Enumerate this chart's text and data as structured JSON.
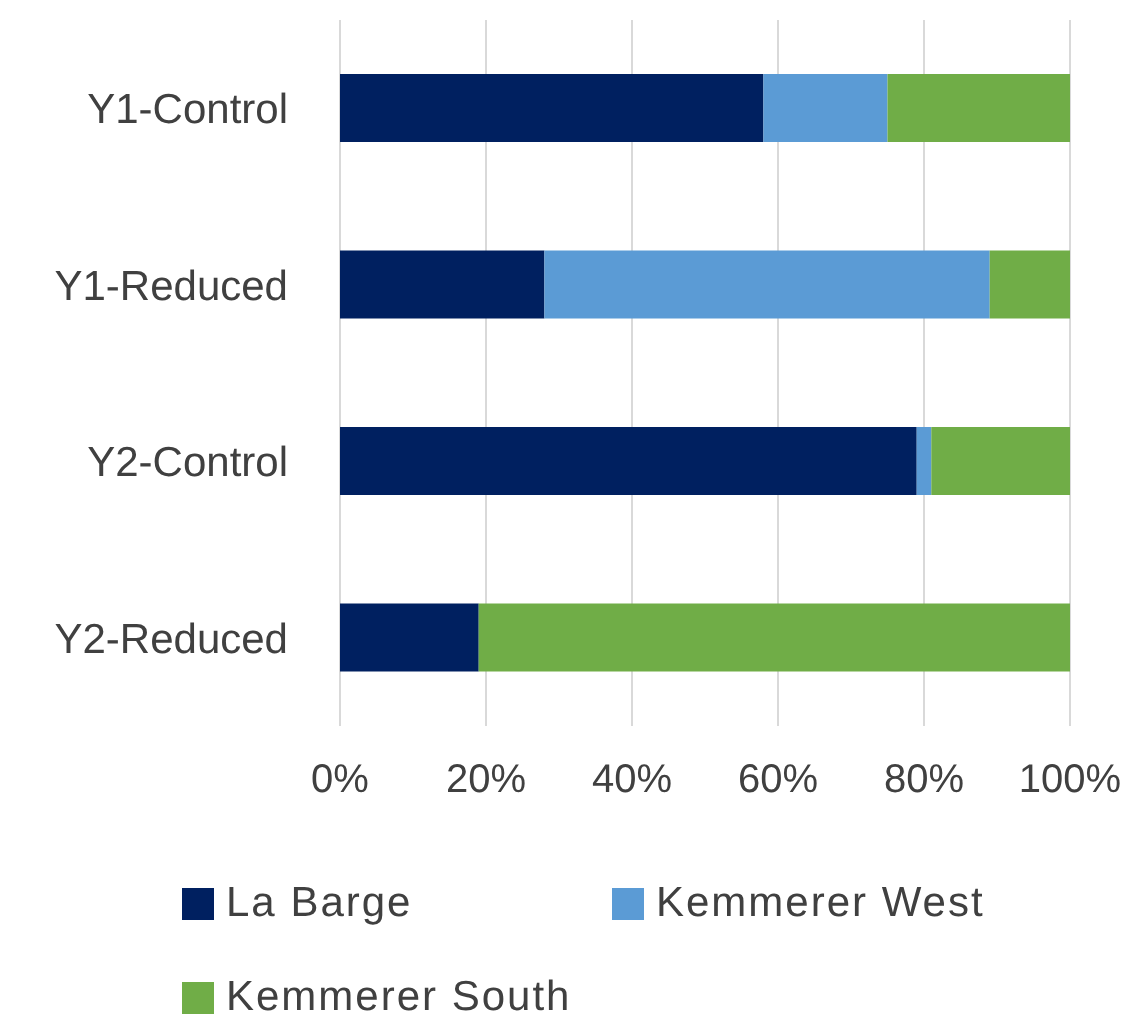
{
  "chart_data": {
    "type": "bar",
    "orientation": "horizontal",
    "stacked": true,
    "categories": [
      "Y1-Control",
      "Y1-Reduced",
      "Y2-Control",
      "Y2-Reduced"
    ],
    "series": [
      {
        "name": "La Barge",
        "color": "#002060",
        "values": [
          58,
          28,
          79,
          19
        ]
      },
      {
        "name": "Kemmerer West",
        "color": "#5b9bd5",
        "values": [
          17,
          61,
          2,
          0
        ]
      },
      {
        "name": "Kemmerer South",
        "color": "#70ad47",
        "values": [
          25,
          11,
          19,
          81
        ]
      }
    ],
    "xlim": [
      0,
      100
    ],
    "xticks": [
      {
        "value": 0,
        "label": "0%"
      },
      {
        "value": 20,
        "label": "20%"
      },
      {
        "value": 40,
        "label": "40%"
      },
      {
        "value": 60,
        "label": "60%"
      },
      {
        "value": 80,
        "label": "80%"
      },
      {
        "value": 100,
        "label": "100%"
      }
    ],
    "grid": "x",
    "legend": "bottom"
  }
}
